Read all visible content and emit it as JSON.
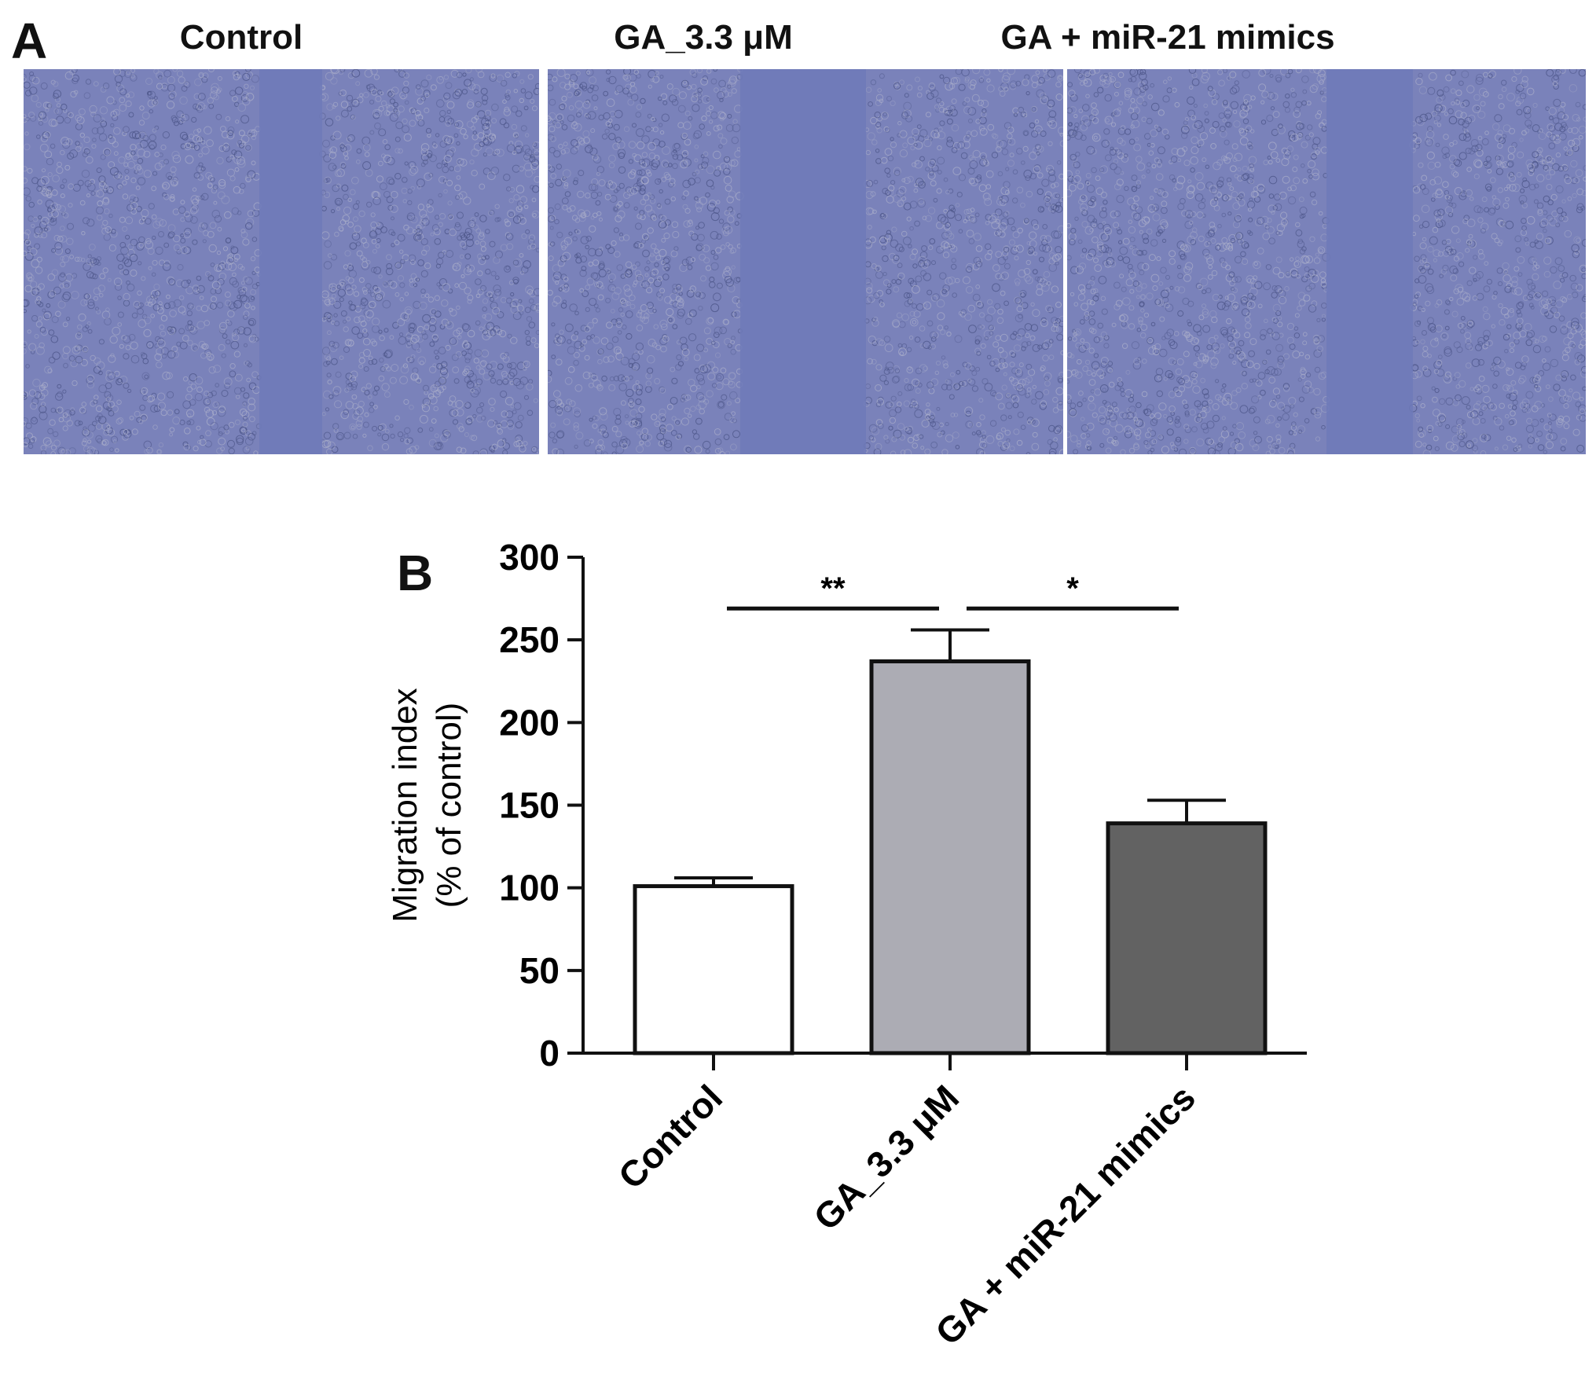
{
  "panels": {
    "a_label": "A",
    "b_label": "B"
  },
  "images": [
    {
      "title": "Control",
      "gap": "narrow"
    },
    {
      "title": "GA_3.3 μM",
      "gap": "wide"
    },
    {
      "title": "GA + miR-21 mimics",
      "gap": "medium"
    }
  ],
  "colors": {
    "photo_base": "#7a82ba",
    "photo_gap": "#6f7ab8",
    "cell_light": "#a8acc9",
    "cell_dark": "#4c5588"
  },
  "chart_data": {
    "type": "bar",
    "categories": [
      "Control",
      "GA_3.3 μM",
      "GA + miR-21 mimics"
    ],
    "values": [
      101,
      237,
      139
    ],
    "errors": [
      5,
      19,
      14
    ],
    "bar_colors": [
      "#ffffff",
      "#acacb4",
      "#626262"
    ],
    "ylabel_line1": "Migration index",
    "ylabel_line2": "(% of control)",
    "ylim": [
      0,
      300
    ],
    "yticks": [
      0,
      50,
      100,
      150,
      200,
      250,
      300
    ],
    "significance": [
      {
        "from": 0,
        "to": 1,
        "label": "**",
        "y": 269
      },
      {
        "from": 1,
        "to": 2,
        "label": "*",
        "y": 269
      }
    ]
  }
}
